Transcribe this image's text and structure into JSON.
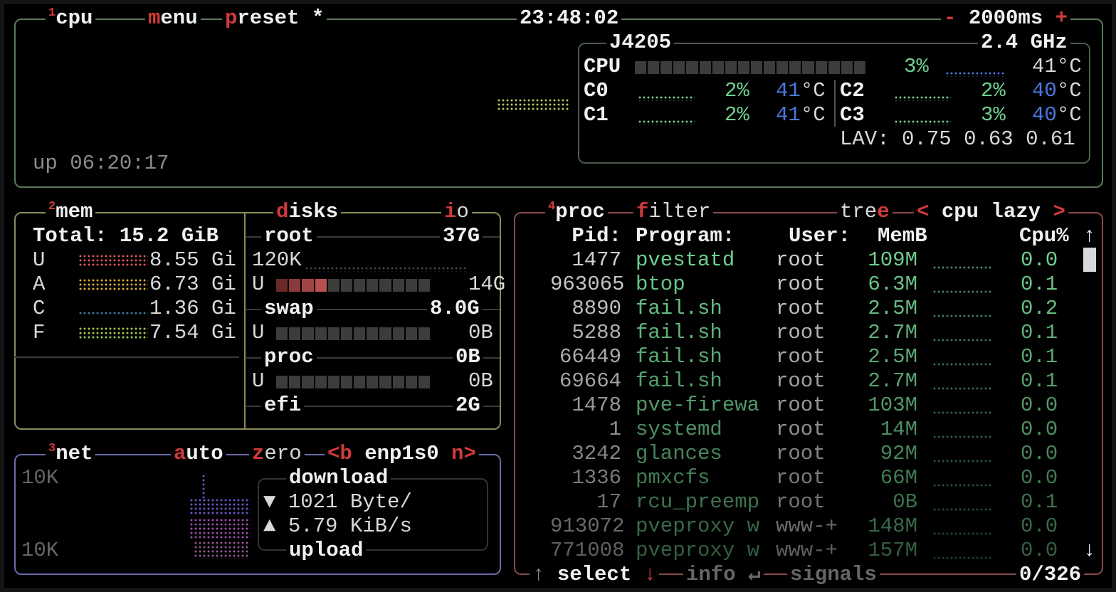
{
  "colors": {
    "cpu_border": "#5b7a5b",
    "mem_border": "#8a8a5a",
    "net_border": "#6a6aaa",
    "proc_border": "#8a4a4a",
    "hotkey": "#d03a3a",
    "green": "#6fcf8f",
    "blue": "#4a78e0"
  },
  "cpu": {
    "num": "1",
    "title": "cpu",
    "menu_hk": "m",
    "menu_rest": "enu",
    "preset_hk": "p",
    "preset_rest": "reset *",
    "clock": "23:48:02",
    "rate_minus": "-",
    "rate": "2000ms",
    "rate_plus": "+",
    "uptime": "up 06:20:17",
    "model": "J4205",
    "freq": "2.4 GHz",
    "total": {
      "label": "CPU",
      "percent": "3%",
      "temp": "41°C",
      "usage": 3
    },
    "cores": [
      {
        "label": "C0",
        "percent": "2%",
        "temp_val": "41",
        "temp_unit": "°C"
      },
      {
        "label": "C1",
        "percent": "2%",
        "temp_val": "41",
        "temp_unit": "°C"
      },
      {
        "label": "C2",
        "percent": "2%",
        "temp_val": "40",
        "temp_unit": "°C"
      },
      {
        "label": "C3",
        "percent": "3%",
        "temp_val": "40",
        "temp_unit": "°C"
      }
    ],
    "lav_label": "LAV:",
    "lav": [
      "0.75",
      "0.63",
      "0.61"
    ]
  },
  "mem": {
    "num": "2",
    "title": "mem",
    "total": "Total: 15.2 GiB",
    "rows": [
      {
        "label": "U",
        "value": "8.55 Gi",
        "color": "#e05a5a"
      },
      {
        "label": "A",
        "value": "6.73 Gi",
        "color": "#e0b040"
      },
      {
        "label": "C",
        "value": "1.36 Gi",
        "color": "#3a7aa0"
      },
      {
        "label": "F",
        "value": "7.54 Gi",
        "color": "#a0d050"
      }
    ]
  },
  "disks": {
    "title_hk": "d",
    "title_rest": "isks",
    "io_hk": "i",
    "io_rest": "o",
    "items": [
      {
        "name": "root",
        "size": "37G",
        "io": "120K",
        "used_label": "U",
        "used": "14G",
        "used_fraction": 0.33
      },
      {
        "name": "swap",
        "size": "8.0G",
        "used_label": "U",
        "used": "0B",
        "used_fraction": 0
      },
      {
        "name": "proc",
        "size": "0B",
        "used_label": "U",
        "used": "0B",
        "used_fraction": 0
      },
      {
        "name": "efi",
        "size": "2G"
      }
    ]
  },
  "net": {
    "num": "3",
    "title": "net",
    "auto_hk": "a",
    "auto_rest": "uto",
    "zero_hk": "z",
    "zero_rest": "ero",
    "prev": "<b",
    "iface": "enp1s0",
    "next": "n>",
    "scale_top": "10K",
    "scale_bottom": "10K",
    "download_label": "download",
    "download_icon": "▼",
    "download": "1021 Byte/",
    "upload_icon": "▲",
    "upload": "5.79 KiB/s",
    "upload_label": "upload"
  },
  "proc": {
    "num": "4",
    "title": "proc",
    "filter_hk": "f",
    "filter_rest": "ilter",
    "tree_rest": "tre",
    "tree_hk": "e",
    "sort_prev": "<",
    "sort": "cpu lazy",
    "sort_next": ">",
    "headers": {
      "pid": "Pid:",
      "program": "Program:",
      "user": "User:",
      "mem": "MemB",
      "cpu": "Cpu%"
    },
    "scroll_up": "↑",
    "scroll_down": "↓",
    "rows": [
      {
        "pid": "1477",
        "program": "pvestatd",
        "user": "root",
        "mem": "109M",
        "cpu": "0.0"
      },
      {
        "pid": "963065",
        "program": "btop",
        "user": "root",
        "mem": "6.3M",
        "cpu": "0.1"
      },
      {
        "pid": "8890",
        "program": "fail.sh",
        "user": "root",
        "mem": "2.5M",
        "cpu": "0.2"
      },
      {
        "pid": "5288",
        "program": "fail.sh",
        "user": "root",
        "mem": "2.7M",
        "cpu": "0.1"
      },
      {
        "pid": "66449",
        "program": "fail.sh",
        "user": "root",
        "mem": "2.5M",
        "cpu": "0.1"
      },
      {
        "pid": "69664",
        "program": "fail.sh",
        "user": "root",
        "mem": "2.7M",
        "cpu": "0.1"
      },
      {
        "pid": "1478",
        "program": "pve-firewa",
        "user": "root",
        "mem": "103M",
        "cpu": "0.0"
      },
      {
        "pid": "1",
        "program": "systemd",
        "user": "root",
        "mem": "14M",
        "cpu": "0.0"
      },
      {
        "pid": "3242",
        "program": "glances",
        "user": "root",
        "mem": "92M",
        "cpu": "0.0"
      },
      {
        "pid": "1336",
        "program": "pmxcfs",
        "user": "root",
        "mem": "66M",
        "cpu": "0.0"
      },
      {
        "pid": "17",
        "program": "rcu_preemp",
        "user": "root",
        "mem": "0B",
        "cpu": "0.1"
      },
      {
        "pid": "913072",
        "program": "pveproxy w",
        "user": "www-+",
        "mem": "148M",
        "cpu": "0.0"
      },
      {
        "pid": "771008",
        "program": "pveproxy w",
        "user": "www-+",
        "mem": "157M",
        "cpu": "0.0"
      }
    ],
    "footer": {
      "up": "↑",
      "select": "select",
      "down": "↓",
      "info": "info",
      "enter": "↵",
      "signals": "signals",
      "count": "0/326"
    }
  }
}
